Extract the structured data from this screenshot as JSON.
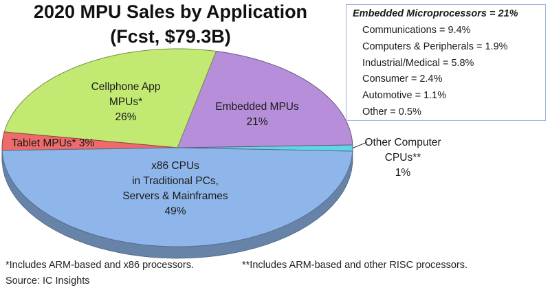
{
  "title_lines": [
    "2020 MPU Sales by Application",
    "(Fcst, $79.3B)"
  ],
  "embedded_breakdown": {
    "heading": "Embedded Microprocessors = 21%",
    "items": [
      "Communications = 9.4%",
      "Computers & Peripherals = 1.9%",
      "Industrial/Medical = 5.8%",
      "Consumer = 2.4%",
      "Automotive = 1.1%",
      "Other = 0.5%"
    ]
  },
  "footnotes": {
    "note1": "*Includes ARM-based and x86 processors.",
    "note2": "**Includes ARM-based and other RISC processors.",
    "source": "Source:  IC Insights"
  },
  "chart_data": {
    "type": "pie",
    "title": "2020 MPU Sales by Application (Fcst, $79.3B)",
    "unit": "%",
    "slices": [
      {
        "name": "Other Computer CPUs**",
        "value": 1,
        "label_lines": [
          "Other Computer",
          "CPUs**",
          "1%"
        ],
        "color": "#5fd6e8"
      },
      {
        "name": "Embedded MPUs",
        "value": 21,
        "label_lines": [
          "Embedded MPUs",
          "21%"
        ],
        "color": "#b68ed9"
      },
      {
        "name": "Cellphone App MPUs*",
        "value": 26,
        "label_lines": [
          "Cellphone App",
          "MPUs*",
          "26%"
        ],
        "color": "#c2ea72"
      },
      {
        "name": "Tablet MPUs*",
        "value": 3,
        "label_lines": [
          "Tablet MPUs* 3%"
        ],
        "color": "#ee6b6b"
      },
      {
        "name": "x86 CPUs in Traditional PCs, Servers & Mainframes",
        "value": 49,
        "label_lines": [
          "x86 CPUs",
          "in Traditional PCs,",
          "Servers & Mainframes",
          "49%"
        ],
        "color": "#8fb6ea"
      }
    ]
  }
}
